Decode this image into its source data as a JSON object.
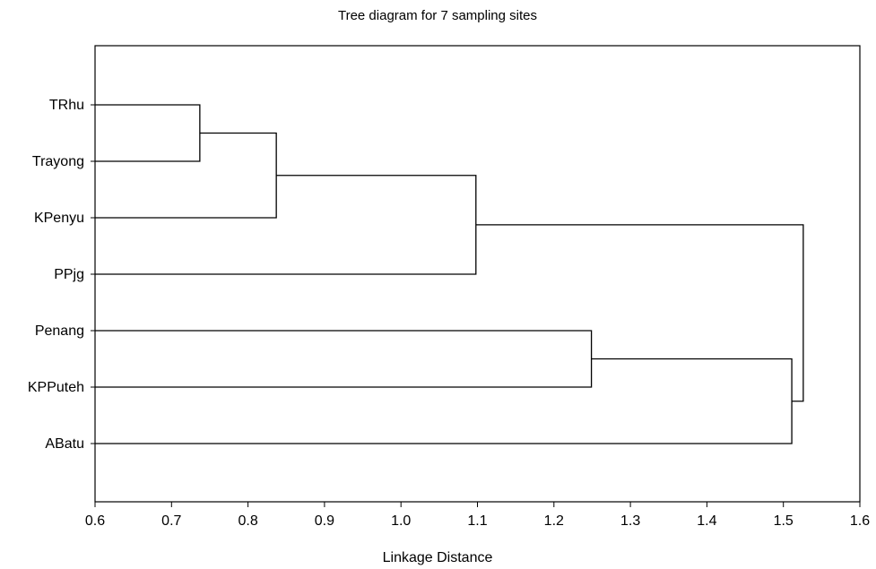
{
  "chart_data": {
    "type": "dendrogram",
    "title": "Tree diagram for 7 sampling sites",
    "xlabel": "Linkage Distance",
    "xlim": [
      0.6,
      1.6
    ],
    "xticks": [
      "0.6",
      "0.7",
      "0.8",
      "0.9",
      "1.0",
      "1.1",
      "1.2",
      "1.3",
      "1.4",
      "1.5",
      "1.6"
    ],
    "xtick_values": [
      0.6,
      0.7,
      0.8,
      0.9,
      1.0,
      1.1,
      1.2,
      1.3,
      1.4,
      1.5,
      1.6
    ],
    "leaves": [
      "TRhu",
      "Trayong",
      "KPenyu",
      "PPjg",
      "Penang",
      "KPPuteh",
      "ABatu"
    ],
    "merges": [
      {
        "a": "TRhu",
        "b": "Trayong",
        "distance": 0.737
      },
      {
        "a": "c0",
        "b": "KPenyu",
        "distance": 0.837
      },
      {
        "a": "c1",
        "b": "PPjg",
        "distance": 1.098
      },
      {
        "a": "Penang",
        "b": "KPPuteh",
        "distance": 1.249
      },
      {
        "a": "c3",
        "b": "ABatu",
        "distance": 1.511
      },
      {
        "a": "c2",
        "b": "c4",
        "distance": 1.526
      }
    ],
    "grid": false
  }
}
